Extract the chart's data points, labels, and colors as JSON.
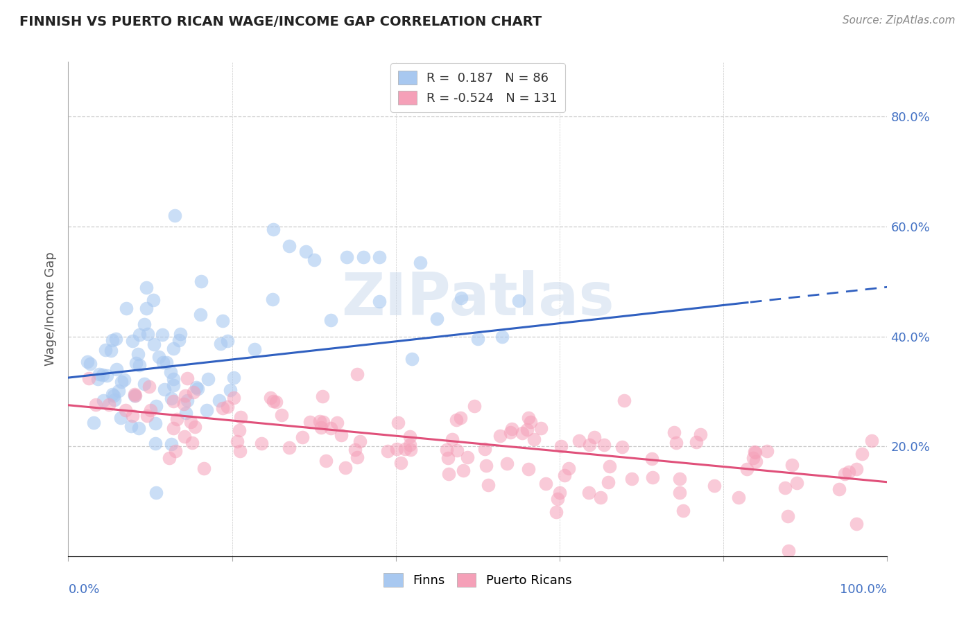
{
  "title": "FINNISH VS PUERTO RICAN WAGE/INCOME GAP CORRELATION CHART",
  "source": "Source: ZipAtlas.com",
  "ylabel": "Wage/Income Gap",
  "legend_finns_R": 0.187,
  "legend_finns_N": 86,
  "legend_puerto_R": -0.524,
  "legend_puerto_N": 131,
  "finn_color": "#A8C8F0",
  "puerto_color": "#F5A0B8",
  "finn_line_color": "#3060C0",
  "puerto_line_color": "#E0507A",
  "ylim": [
    0.0,
    0.9
  ],
  "xlim": [
    0.0,
    1.0
  ],
  "yticks": [
    0.2,
    0.4,
    0.6,
    0.8
  ],
  "ytick_labels": [
    "20.0%",
    "40.0%",
    "60.0%",
    "80.0%"
  ],
  "grid_color": "#CCCCCC",
  "background_color": "#FFFFFF",
  "watermark": "ZIPatlas",
  "watermark_color": "#C8D8EC",
  "finn_line_solid_end": 0.83,
  "finn_line_intercept": 0.325,
  "finn_line_slope": 0.165,
  "puerto_line_intercept": 0.275,
  "puerto_line_slope": -0.14
}
